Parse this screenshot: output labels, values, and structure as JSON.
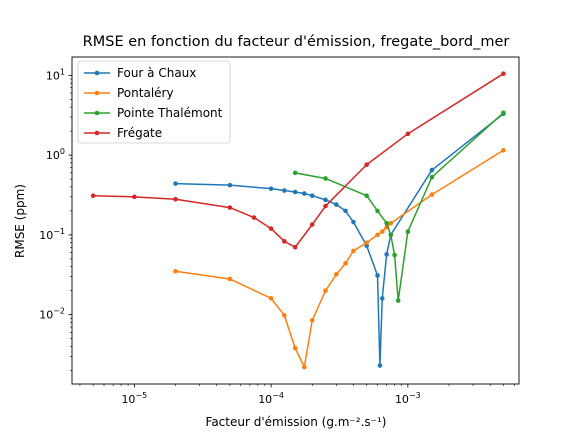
{
  "chart_data": {
    "type": "line",
    "title": "RMSE en fonction du facteur d'émission, fregate_bord_mer",
    "xlabel": "Facteur d'émission (g.m⁻².s⁻¹)",
    "ylabel": "RMSE (ppm)",
    "xscale": "log",
    "yscale": "log",
    "xlim": [
      3.5e-06,
      0.0065
    ],
    "ylim": [
      0.00135,
      17
    ],
    "grid": false,
    "legend_position": "top-left",
    "x_ticks": [
      {
        "value": 1e-05,
        "base": "10",
        "exp": "−5"
      },
      {
        "value": 0.0001,
        "base": "10",
        "exp": "−4"
      },
      {
        "value": 0.001,
        "base": "10",
        "exp": "−3"
      }
    ],
    "y_ticks": [
      {
        "value": 0.01,
        "base": "10",
        "exp": "−2"
      },
      {
        "value": 0.1,
        "base": "10",
        "exp": "−1"
      },
      {
        "value": 1,
        "base": "10",
        "exp": "0"
      },
      {
        "value": 10,
        "base": "10",
        "exp": "1"
      }
    ],
    "series": [
      {
        "name": "Four à Chaux",
        "color": "#1f77b4",
        "x": [
          2e-05,
          5e-05,
          0.0001,
          0.000125,
          0.00015,
          0.000175,
          0.0002,
          0.00025,
          0.0003,
          0.00035,
          0.0004,
          0.0005,
          0.0006,
          0.000625,
          0.00065,
          0.0007,
          0.00075,
          0.0015,
          0.005
        ],
        "y": [
          0.44,
          0.42,
          0.38,
          0.36,
          0.345,
          0.33,
          0.31,
          0.275,
          0.24,
          0.2,
          0.145,
          0.073,
          0.031,
          0.0023,
          0.016,
          0.057,
          0.1,
          0.65,
          3.3
        ]
      },
      {
        "name": "Pontaléry",
        "color": "#ff7f0e",
        "x": [
          2e-05,
          5e-05,
          0.0001,
          0.000125,
          0.00015,
          0.000175,
          0.0002,
          0.00025,
          0.0003,
          0.00035,
          0.0004,
          0.0005,
          0.0006,
          0.00065,
          0.0007,
          0.00075,
          0.0015,
          0.005
        ],
        "y": [
          0.035,
          0.028,
          0.016,
          0.0098,
          0.0038,
          0.0022,
          0.0085,
          0.02,
          0.032,
          0.044,
          0.063,
          0.08,
          0.1,
          0.11,
          0.125,
          0.14,
          0.32,
          1.15
        ]
      },
      {
        "name": "Pointe Thalémont",
        "color": "#2ca02c",
        "x": [
          0.00015,
          0.00025,
          0.0005,
          0.0006,
          0.0007,
          0.00075,
          0.0008,
          0.00085,
          0.001,
          0.0015,
          0.005
        ],
        "y": [
          0.6,
          0.51,
          0.31,
          0.2,
          0.14,
          0.1,
          0.056,
          0.015,
          0.11,
          0.53,
          3.4
        ]
      },
      {
        "name": "Frégate",
        "color": "#d62728",
        "x": [
          5e-06,
          1e-05,
          2e-05,
          5e-05,
          7.5e-05,
          0.0001,
          0.000125,
          0.00015,
          0.0002,
          0.00025,
          0.0005,
          0.001,
          0.005
        ],
        "y": [
          0.31,
          0.3,
          0.28,
          0.22,
          0.165,
          0.12,
          0.083,
          0.07,
          0.135,
          0.23,
          0.76,
          1.85,
          10.5
        ]
      }
    ]
  }
}
